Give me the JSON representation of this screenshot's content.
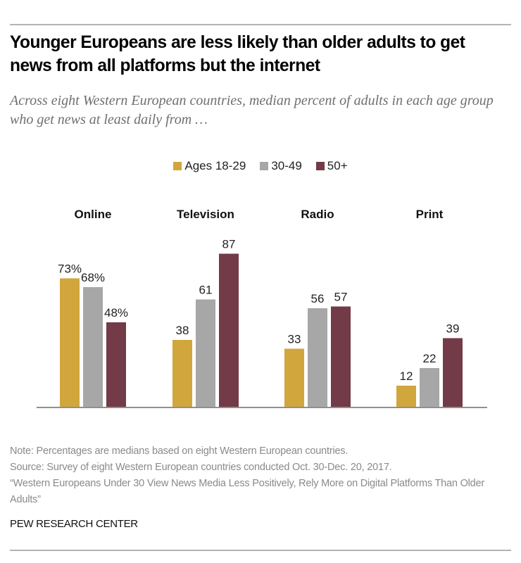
{
  "header": {
    "title": "Younger Europeans are less likely than older adults to get news from all platforms but the internet",
    "subtitle": "Across eight Western European countries, median percent of adults in each age group who get news at least daily from …"
  },
  "legend": [
    {
      "label": "Ages 18-29",
      "color": "#d1a63c"
    },
    {
      "label": "30-49",
      "color": "#a7a7a7"
    },
    {
      "label": "50+",
      "color": "#733a47"
    }
  ],
  "chart_data": {
    "type": "bar",
    "title": "Younger Europeans are less likely than older adults to get news from all platforms but the internet",
    "subtitle": "Across eight Western European countries, median percent of adults in each age group who get news at least daily from …",
    "categories": [
      "Online",
      "Television",
      "Radio",
      "Print"
    ],
    "series": [
      {
        "name": "Ages 18-29",
        "color": "#d1a63c",
        "values": [
          73,
          38,
          33,
          12
        ],
        "labels": [
          "73%",
          "38",
          "33",
          "12"
        ]
      },
      {
        "name": "30-49",
        "color": "#a7a7a7",
        "values": [
          68,
          61,
          56,
          22
        ],
        "labels": [
          "68%",
          "61",
          "56",
          "22"
        ]
      },
      {
        "name": "50+",
        "color": "#733a47",
        "values": [
          48,
          87,
          57,
          39
        ],
        "labels": [
          "48%",
          "87",
          "57",
          "39"
        ]
      }
    ],
    "xlabel": "",
    "ylabel": "",
    "ylim": [
      0,
      100
    ],
    "grid": false,
    "legend_position": "top-center",
    "data_labels": true
  },
  "footer": {
    "note": "Note: Percentages are medians based on eight Western European countries.",
    "source": "Source: Survey of eight Western European countries conducted Oct. 30-Dec. 20, 2017.",
    "report": "“Western Europeans Under 30 View News Media Less Positively, Rely More on Digital Platforms Than Older Adults”",
    "brand": "PEW RESEARCH CENTER"
  }
}
